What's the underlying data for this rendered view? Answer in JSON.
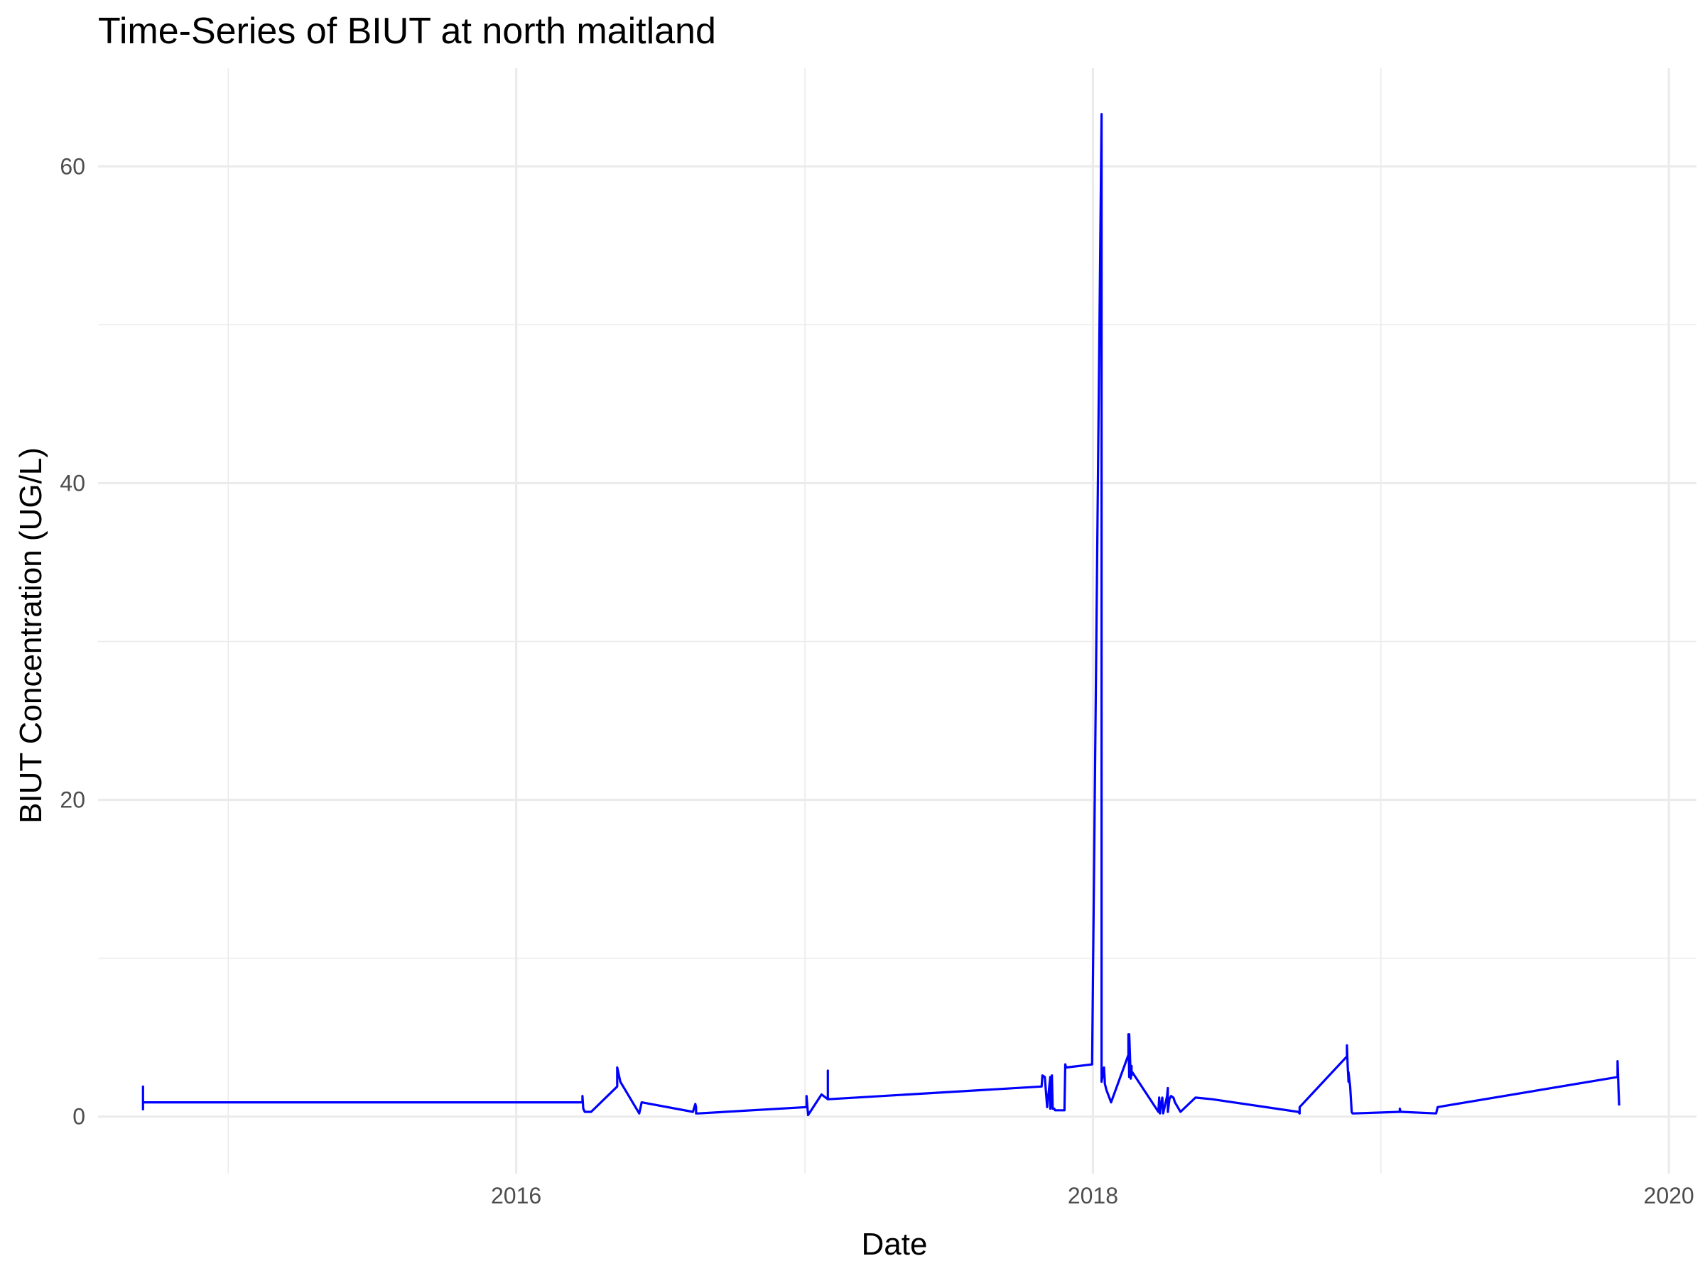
{
  "chart_data": {
    "type": "line",
    "title": "Time-Series of BIUT at north maitland",
    "xlabel": "Date",
    "ylabel": "BIUT Concentration (UG/L)",
    "xlim": [
      "2014-07-20",
      "2020-02-05"
    ],
    "ylim": [
      -3.6,
      66.2
    ],
    "x_ticks": [
      {
        "value": "2015-01-01",
        "label": ""
      },
      {
        "value": "2016-01-01",
        "label": "2016"
      },
      {
        "value": "2017-01-01",
        "label": ""
      },
      {
        "value": "2018-01-01",
        "label": "2018"
      },
      {
        "value": "2019-01-01",
        "label": ""
      },
      {
        "value": "2020-01-01",
        "label": "2020"
      }
    ],
    "y_ticks": [
      {
        "value": 0,
        "label": "0"
      },
      {
        "value": 10,
        "label": ""
      },
      {
        "value": 20,
        "label": "20"
      },
      {
        "value": 30,
        "label": ""
      },
      {
        "value": 40,
        "label": "40"
      },
      {
        "value": 50,
        "label": ""
      },
      {
        "value": 60,
        "label": "60"
      }
    ],
    "grid": true,
    "line_color": "#0000ff",
    "series": [
      {
        "x": [
          "2014-09-15",
          "2014-09-15",
          "2014-09-15",
          "2016-03-25",
          "2016-03-25",
          "2016-03-26",
          "2016-03-28",
          "2016-04-05",
          "2016-05-08",
          "2016-05-08",
          "2016-05-12",
          "2016-06-05",
          "2016-06-08",
          "2016-08-12",
          "2016-08-15",
          "2016-08-16",
          "2016-08-16",
          "2016-08-19",
          "2017-01-03",
          "2017-01-03",
          "2017-01-05",
          "2017-01-22",
          "2017-01-30",
          "2017-01-30",
          "2017-01-30",
          "2017-01-31",
          "2017-10-28",
          "2017-10-29",
          "2017-11-01",
          "2017-11-04",
          "2017-11-08",
          "2017-11-08",
          "2017-11-10",
          "2017-11-11",
          "2017-11-13",
          "2017-11-14",
          "2017-11-26",
          "2017-11-26",
          "2017-11-27",
          "2017-11-28",
          "2017-12-31",
          "2017-12-31",
          "2018-01-12",
          "2018-01-12",
          "2018-01-15",
          "2018-01-16",
          "2018-01-16",
          "2018-01-18",
          "2018-01-24",
          "2018-02-15",
          "2018-02-15",
          "2018-02-16",
          "2018-02-16",
          "2018-02-18",
          "2018-02-19",
          "2018-02-19",
          "2018-02-20",
          "2018-03-25",
          "2018-03-26",
          "2018-03-27",
          "2018-03-28",
          "2018-03-29",
          "2018-03-30",
          "2018-03-31",
          "2018-04-05",
          "2018-04-06",
          "2018-04-06",
          "2018-04-08",
          "2018-04-10",
          "2018-04-13",
          "2018-04-15",
          "2018-04-22",
          "2018-05-11",
          "2018-06-01",
          "2018-09-18",
          "2018-09-20",
          "2018-09-20",
          "2018-11-19",
          "2018-11-19",
          "2018-11-20",
          "2018-11-21",
          "2018-11-21",
          "2018-11-23",
          "2018-11-25",
          "2018-11-26",
          "2018-11-28",
          "2019-01-25",
          "2019-01-25",
          "2019-01-26",
          "2019-01-27",
          "2019-03-12",
          "2019-03-12",
          "2019-03-14",
          "2019-10-28",
          "2019-10-28",
          "2019-10-29",
          "2019-10-30"
        ],
        "y": [
          0.4,
          1.9,
          0.9,
          0.9,
          1.3,
          0.5,
          0.3,
          0.3,
          1.9,
          3.1,
          2.2,
          0.2,
          0.9,
          0.3,
          0.8,
          0.6,
          0.2,
          0.2,
          0.6,
          1.3,
          0.1,
          1.4,
          1.1,
          2.9,
          1.2,
          1.1,
          1.9,
          2.6,
          2.5,
          0.6,
          2.5,
          0.5,
          2.6,
          0.5,
          0.5,
          0.4,
          0.4,
          0.5,
          3.3,
          3.1,
          3.3,
          3.4,
          63.3,
          2.2,
          3.1,
          2.3,
          2.1,
          1.7,
          0.9,
          3.9,
          5.2,
          2.5,
          5.2,
          2.4,
          3.2,
          2.6,
          2.8,
          0.3,
          1.2,
          0.2,
          0.7,
          0.9,
          1.2,
          0.2,
          1.3,
          1.8,
          0.3,
          1.1,
          1.3,
          1.2,
          0.9,
          0.3,
          1.2,
          1.1,
          0.3,
          0.2,
          0.6,
          3.8,
          4.5,
          3.1,
          2.2,
          2.8,
          1.9,
          0.3,
          0.2,
          0.2,
          0.3,
          0.5,
          0.3,
          0.3,
          0.2,
          0.2,
          0.6,
          2.5,
          3.5,
          1.9,
          0.7
        ]
      }
    ]
  }
}
